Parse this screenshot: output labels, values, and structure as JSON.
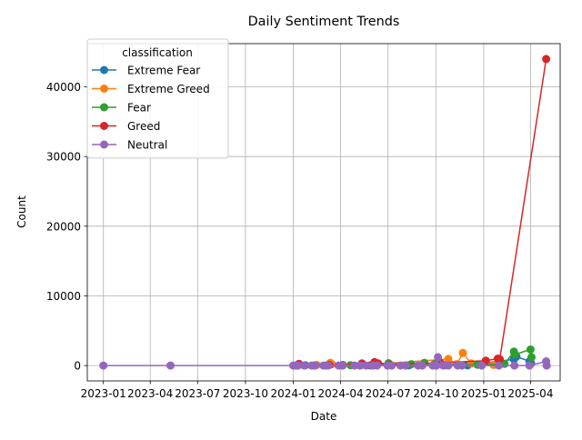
{
  "chart_data": {
    "type": "line",
    "title": "Daily Sentiment Trends",
    "xlabel": "Date",
    "ylabel": "Count",
    "x_type": "date",
    "xlim": [
      "2022-12-01",
      "2025-05-28"
    ],
    "ylim": [
      -2200,
      46200
    ],
    "x_ticks": [
      {
        "date": "2023-01-01",
        "label": "2023-01"
      },
      {
        "date": "2023-04-01",
        "label": "2023-04"
      },
      {
        "date": "2023-07-01",
        "label": "2023-07"
      },
      {
        "date": "2023-10-01",
        "label": "2023-10"
      },
      {
        "date": "2024-01-01",
        "label": "2024-01"
      },
      {
        "date": "2024-04-01",
        "label": "2024-04"
      },
      {
        "date": "2024-07-01",
        "label": "2024-07"
      },
      {
        "date": "2024-10-01",
        "label": "2024-10"
      },
      {
        "date": "2025-01-01",
        "label": "2025-01"
      },
      {
        "date": "2025-04-01",
        "label": "2025-04"
      }
    ],
    "y_ticks": [
      0,
      10000,
      20000,
      30000,
      40000
    ],
    "grid": true,
    "legend": {
      "title": "classification",
      "placement": "upper-left"
    },
    "series": [
      {
        "name": "Extreme Fear",
        "color": "#1f77b4",
        "points": [
          [
            "2024-01-24",
            40
          ],
          [
            "2024-02-10",
            20
          ],
          [
            "2024-03-05",
            15
          ],
          [
            "2024-04-05",
            30
          ],
          [
            "2024-05-28",
            25
          ],
          [
            "2024-08-10",
            30
          ],
          [
            "2024-10-18",
            40
          ],
          [
            "2024-12-01",
            30
          ],
          [
            "2025-02-28",
            900
          ],
          [
            "2025-03-05",
            1300
          ],
          [
            "2025-03-30",
            600
          ],
          [
            "2025-04-02",
            300
          ]
        ]
      },
      {
        "name": "Extreme Greed",
        "color": "#ff7f0e",
        "points": [
          [
            "2024-01-06",
            20
          ],
          [
            "2024-02-15",
            100
          ],
          [
            "2024-03-12",
            400
          ],
          [
            "2024-03-15",
            200
          ],
          [
            "2024-05-10",
            60
          ],
          [
            "2024-10-25",
            950
          ],
          [
            "2024-11-10",
            200
          ],
          [
            "2024-11-22",
            1800
          ],
          [
            "2024-12-08",
            300
          ],
          [
            "2025-01-20",
            100
          ]
        ]
      },
      {
        "name": "Fear",
        "color": "#2ca02c",
        "points": [
          [
            "2024-01-08",
            30
          ],
          [
            "2024-04-20",
            60
          ],
          [
            "2024-07-02",
            350
          ],
          [
            "2024-08-15",
            200
          ],
          [
            "2024-09-09",
            400
          ],
          [
            "2024-09-28",
            200
          ],
          [
            "2024-12-20",
            120
          ],
          [
            "2025-02-10",
            250
          ],
          [
            "2025-02-28",
            2000
          ],
          [
            "2025-03-02",
            1600
          ],
          [
            "2025-04-01",
            2300
          ],
          [
            "2025-04-03",
            1200
          ]
        ]
      },
      {
        "name": "Greed",
        "color": "#d62728",
        "points": [
          [
            "2024-01-12",
            250
          ],
          [
            "2024-03-10",
            100
          ],
          [
            "2024-04-05",
            80
          ],
          [
            "2024-05-12",
            300
          ],
          [
            "2024-06-05",
            500
          ],
          [
            "2024-06-12",
            300
          ],
          [
            "2024-07-05",
            150
          ],
          [
            "2024-10-10",
            400
          ],
          [
            "2025-01-05",
            700
          ],
          [
            "2025-01-28",
            1000
          ],
          [
            "2025-02-01",
            900
          ],
          [
            "2025-05-01",
            44000
          ]
        ]
      },
      {
        "name": "Neutral",
        "color": "#9467bd",
        "points": [
          [
            "2023-01-01",
            0
          ],
          [
            "2023-05-10",
            0
          ],
          [
            "2024-01-01",
            0
          ],
          [
            "2024-01-05",
            0
          ],
          [
            "2024-01-10",
            0
          ],
          [
            "2024-01-22",
            0
          ],
          [
            "2024-02-05",
            0
          ],
          [
            "2024-02-12",
            0
          ],
          [
            "2024-02-28",
            0
          ],
          [
            "2024-03-08",
            0
          ],
          [
            "2024-03-28",
            0
          ],
          [
            "2024-04-04",
            0
          ],
          [
            "2024-04-28",
            0
          ],
          [
            "2024-05-08",
            0
          ],
          [
            "2024-05-20",
            0
          ],
          [
            "2024-06-02",
            0
          ],
          [
            "2024-06-10",
            0
          ],
          [
            "2024-06-30",
            0
          ],
          [
            "2024-07-08",
            0
          ],
          [
            "2024-07-25",
            0
          ],
          [
            "2024-08-04",
            0
          ],
          [
            "2024-08-28",
            0
          ],
          [
            "2024-09-05",
            0
          ],
          [
            "2024-09-25",
            0
          ],
          [
            "2024-10-02",
            0
          ],
          [
            "2024-10-05",
            1200
          ],
          [
            "2024-10-15",
            0
          ],
          [
            "2024-10-25",
            0
          ],
          [
            "2024-11-12",
            0
          ],
          [
            "2024-11-20",
            0
          ],
          [
            "2024-12-28",
            0
          ],
          [
            "2025-01-30",
            0
          ],
          [
            "2025-03-01",
            0
          ],
          [
            "2025-03-30",
            0
          ],
          [
            "2025-05-01",
            600
          ],
          [
            "2025-05-02",
            0
          ]
        ]
      }
    ]
  }
}
